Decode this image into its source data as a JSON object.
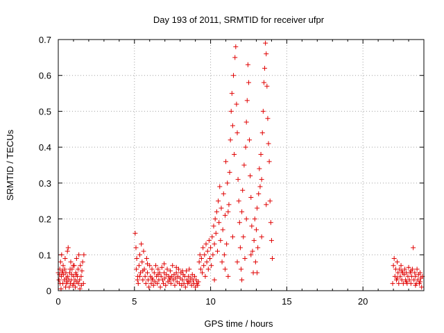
{
  "chart_data": {
    "type": "scatter",
    "title": "Day 193 of 2011, SRMTID for receiver ufpr",
    "xlabel": "GPS time / hours",
    "ylabel": "SRMTID / TECUs",
    "xlim": [
      0,
      24
    ],
    "ylim": [
      0,
      0.7
    ],
    "xticks": [
      0,
      5,
      10,
      15,
      20
    ],
    "xtick_labels": [
      "0",
      "5",
      "10",
      "15",
      "20"
    ],
    "yticks": [
      0,
      0.1,
      0.2,
      0.3,
      0.4,
      0.5,
      0.6,
      0.7
    ],
    "ytick_labels": [
      "0",
      "0.1",
      "0.2",
      "0.3",
      "0.4",
      "0.5",
      "0.6",
      "0.7"
    ],
    "grid": true,
    "marker": "+",
    "marker_color": "#e00000",
    "series": [
      {
        "name": "SRMTID",
        "points": [
          [
            0.0,
            0.05
          ],
          [
            0.05,
            0.03
          ],
          [
            0.1,
            0.06
          ],
          [
            0.12,
            0.02
          ],
          [
            0.15,
            0.08
          ],
          [
            0.2,
            0.04
          ],
          [
            0.22,
            0.1
          ],
          [
            0.25,
            0.05
          ],
          [
            0.3,
            0.02
          ],
          [
            0.32,
            0.07
          ],
          [
            0.35,
            0.045
          ],
          [
            0.4,
            0.03
          ],
          [
            0.42,
            0.06
          ],
          [
            0.45,
            0.09
          ],
          [
            0.5,
            0.05
          ],
          [
            0.52,
            0.035
          ],
          [
            0.55,
            0.02
          ],
          [
            0.6,
            0.11
          ],
          [
            0.62,
            0.04
          ],
          [
            0.65,
            0.12
          ],
          [
            0.7,
            0.03
          ],
          [
            0.72,
            0.01
          ],
          [
            0.75,
            0.05
          ],
          [
            0.8,
            0.02
          ],
          [
            0.82,
            0.08
          ],
          [
            0.85,
            0.03
          ],
          [
            0.9,
            0.06
          ],
          [
            0.95,
            0.015
          ],
          [
            1.0,
            0.04
          ],
          [
            1.02,
            0.02
          ],
          [
            1.05,
            0.07
          ],
          [
            1.1,
            0.03
          ],
          [
            1.12,
            0.01
          ],
          [
            1.15,
            0.05
          ],
          [
            1.2,
            0.09
          ],
          [
            1.22,
            0.025
          ],
          [
            1.25,
            0.04
          ],
          [
            1.3,
            0.06
          ],
          [
            1.32,
            0.02
          ],
          [
            1.35,
            0.1
          ],
          [
            1.4,
            0.03
          ],
          [
            1.45,
            0.07
          ],
          [
            1.5,
            0.04
          ],
          [
            1.52,
            0.015
          ],
          [
            1.55,
            0.055
          ],
          [
            1.6,
            0.08
          ],
          [
            1.65,
            0.02
          ],
          [
            1.68,
            0.1
          ],
          [
            0.18,
            0.005
          ],
          [
            0.48,
            0.01
          ],
          [
            0.78,
            0.06
          ],
          [
            0.98,
            0.07
          ],
          [
            1.18,
            0.045
          ],
          [
            1.42,
            0.005
          ],
          [
            0.08,
            0.045
          ],
          [
            0.28,
            0.055
          ],
          [
            0.58,
            0.025
          ],
          [
            0.88,
            0.045
          ],
          [
            5.05,
            0.16
          ],
          [
            5.1,
            0.12
          ],
          [
            5.12,
            0.06
          ],
          [
            5.15,
            0.09
          ],
          [
            5.2,
            0.03
          ],
          [
            5.22,
            0.04
          ],
          [
            5.25,
            0.02
          ],
          [
            5.3,
            0.07
          ],
          [
            5.35,
            0.1
          ],
          [
            5.4,
            0.05
          ],
          [
            5.45,
            0.13
          ],
          [
            5.5,
            0.08
          ],
          [
            5.55,
            0.03
          ],
          [
            5.6,
            0.11
          ],
          [
            5.65,
            0.06
          ],
          [
            5.7,
            0.04
          ],
          [
            5.75,
            0.02
          ],
          [
            5.8,
            0.09
          ],
          [
            5.85,
            0.05
          ],
          [
            5.9,
            0.03
          ],
          [
            5.95,
            0.01
          ],
          [
            6.0,
            0.07
          ],
          [
            6.05,
            0.04
          ],
          [
            6.1,
            0.02
          ],
          [
            6.15,
            0.06
          ],
          [
            6.2,
            0.03
          ],
          [
            6.25,
            0.015
          ],
          [
            6.3,
            0.05
          ],
          [
            6.35,
            0.025
          ],
          [
            6.4,
            0.07
          ],
          [
            6.45,
            0.04
          ],
          [
            6.5,
            0.02
          ],
          [
            6.55,
            0.06
          ],
          [
            6.6,
            0.03
          ],
          [
            6.65,
            0.05
          ],
          [
            6.7,
            0.01
          ],
          [
            6.75,
            0.04
          ],
          [
            6.8,
            0.065
          ],
          [
            6.85,
            0.03
          ],
          [
            6.9,
            0.02
          ],
          [
            6.95,
            0.05
          ],
          [
            7.0,
            0.035
          ],
          [
            7.05,
            0.015
          ],
          [
            7.1,
            0.045
          ],
          [
            7.15,
            0.06
          ],
          [
            7.2,
            0.025
          ],
          [
            7.25,
            0.04
          ],
          [
            7.3,
            0.03
          ],
          [
            7.35,
            0.055
          ],
          [
            7.4,
            0.02
          ],
          [
            7.45,
            0.04
          ],
          [
            7.5,
            0.07
          ],
          [
            7.55,
            0.03
          ],
          [
            7.6,
            0.045
          ],
          [
            7.65,
            0.015
          ],
          [
            7.7,
            0.035
          ],
          [
            7.75,
            0.05
          ],
          [
            7.8,
            0.025
          ],
          [
            7.85,
            0.04
          ],
          [
            7.9,
            0.06
          ],
          [
            7.95,
            0.02
          ],
          [
            8.0,
            0.035
          ],
          [
            8.05,
            0.05
          ],
          [
            8.1,
            0.015
          ],
          [
            8.15,
            0.03
          ],
          [
            8.2,
            0.045
          ],
          [
            8.25,
            0.02
          ],
          [
            8.3,
            0.04
          ],
          [
            8.35,
            0.01
          ],
          [
            8.4,
            0.055
          ],
          [
            8.45,
            0.03
          ],
          [
            8.5,
            0.02
          ],
          [
            8.55,
            0.04
          ],
          [
            8.6,
            0.06
          ],
          [
            8.65,
            0.025
          ],
          [
            8.7,
            0.035
          ],
          [
            8.75,
            0.015
          ],
          [
            8.8,
            0.045
          ],
          [
            8.85,
            0.03
          ],
          [
            8.9,
            0.02
          ],
          [
            8.95,
            0.04
          ],
          [
            9.0,
            0.01
          ],
          [
            9.05,
            0.03
          ],
          [
            9.1,
            0.02
          ],
          [
            9.15,
            0.015
          ],
          [
            9.2,
            0.025
          ],
          [
            5.35,
            0.04
          ],
          [
            5.55,
            0.055
          ],
          [
            5.85,
            0.075
          ],
          [
            6.15,
            0.035
          ],
          [
            6.55,
            0.045
          ],
          [
            6.95,
            0.075
          ],
          [
            7.35,
            0.035
          ],
          [
            7.75,
            0.065
          ],
          [
            8.15,
            0.055
          ],
          [
            8.55,
            0.025
          ],
          [
            9.25,
            0.08
          ],
          [
            9.3,
            0.1
          ],
          [
            9.35,
            0.06
          ],
          [
            9.4,
            0.09
          ],
          [
            9.45,
            0.05
          ],
          [
            9.5,
            0.12
          ],
          [
            9.55,
            0.07
          ],
          [
            9.6,
            0.1
          ],
          [
            9.65,
            0.04
          ],
          [
            9.7,
            0.13
          ],
          [
            9.75,
            0.08
          ],
          [
            9.8,
            0.11
          ],
          [
            9.85,
            0.06
          ],
          [
            9.9,
            0.14
          ],
          [
            9.95,
            0.09
          ],
          [
            10.0,
            0.12
          ],
          [
            10.05,
            0.07
          ],
          [
            10.1,
            0.15
          ],
          [
            10.15,
            0.1
          ],
          [
            10.2,
            0.18
          ],
          [
            10.25,
            0.13
          ],
          [
            10.3,
            0.2
          ],
          [
            10.35,
            0.16
          ],
          [
            10.4,
            0.22
          ],
          [
            10.45,
            0.11
          ],
          [
            10.5,
            0.25
          ],
          [
            10.55,
            0.19
          ],
          [
            10.6,
            0.29
          ],
          [
            10.65,
            0.14
          ],
          [
            10.7,
            0.23
          ],
          [
            10.75,
            0.08
          ],
          [
            10.8,
            0.17
          ],
          [
            10.85,
            0.27
          ],
          [
            10.9,
            0.1
          ],
          [
            10.95,
            0.21
          ],
          [
            11.0,
            0.36
          ],
          [
            11.05,
            0.13
          ],
          [
            11.1,
            0.3
          ],
          [
            11.15,
            0.04
          ],
          [
            11.2,
            0.24
          ],
          [
            11.25,
            0.33
          ],
          [
            11.3,
            0.42
          ],
          [
            11.35,
            0.5
          ],
          [
            11.4,
            0.55
          ],
          [
            11.45,
            0.46
          ],
          [
            11.5,
            0.6
          ],
          [
            11.55,
            0.38
          ],
          [
            11.6,
            0.65
          ],
          [
            11.65,
            0.68
          ],
          [
            11.7,
            0.52
          ],
          [
            11.75,
            0.44
          ],
          [
            11.8,
            0.31
          ],
          [
            11.85,
            0.25
          ],
          [
            11.9,
            0.19
          ],
          [
            11.95,
            0.12
          ],
          [
            12.0,
            0.06
          ],
          [
            12.05,
            0.22
          ],
          [
            12.1,
            0.28
          ],
          [
            12.15,
            0.15
          ],
          [
            12.2,
            0.35
          ],
          [
            12.25,
            0.09
          ],
          [
            12.3,
            0.4
          ],
          [
            12.35,
            0.47
          ],
          [
            12.4,
            0.53
          ],
          [
            12.45,
            0.63
          ],
          [
            12.5,
            0.58
          ],
          [
            12.55,
            0.42
          ],
          [
            12.6,
            0.32
          ],
          [
            12.65,
            0.26
          ],
          [
            12.7,
            0.18
          ],
          [
            12.75,
            0.11
          ],
          [
            12.8,
            0.05
          ],
          [
            12.85,
            0.14
          ],
          [
            12.9,
            0.2
          ],
          [
            12.95,
            0.08
          ],
          [
            13.0,
            0.17
          ],
          [
            13.05,
            0.23
          ],
          [
            13.1,
            0.12
          ],
          [
            13.15,
            0.27
          ],
          [
            13.2,
            0.34
          ],
          [
            13.25,
            0.29
          ],
          [
            13.3,
            0.38
          ],
          [
            13.35,
            0.31
          ],
          [
            13.4,
            0.44
          ],
          [
            13.45,
            0.5
          ],
          [
            13.5,
            0.58
          ],
          [
            13.55,
            0.62
          ],
          [
            13.6,
            0.69
          ],
          [
            13.65,
            0.66
          ],
          [
            13.7,
            0.57
          ],
          [
            13.75,
            0.48
          ],
          [
            13.8,
            0.41
          ],
          [
            13.85,
            0.36
          ],
          [
            13.9,
            0.25
          ],
          [
            13.95,
            0.19
          ],
          [
            14.0,
            0.14
          ],
          [
            14.05,
            0.09
          ],
          [
            11.15,
            0.22
          ],
          [
            11.45,
            0.15
          ],
          [
            11.75,
            0.08
          ],
          [
            12.05,
            0.03
          ],
          [
            12.35,
            0.2
          ],
          [
            12.65,
            0.1
          ],
          [
            13.05,
            0.05
          ],
          [
            13.35,
            0.15
          ],
          [
            13.65,
            0.24
          ],
          [
            10.95,
            0.06
          ],
          [
            10.25,
            0.03
          ],
          [
            21.95,
            0.02
          ],
          [
            22.0,
            0.07
          ],
          [
            22.05,
            0.09
          ],
          [
            22.1,
            0.04
          ],
          [
            22.15,
            0.06
          ],
          [
            22.2,
            0.03
          ],
          [
            22.25,
            0.08
          ],
          [
            22.3,
            0.05
          ],
          [
            22.35,
            0.02
          ],
          [
            22.4,
            0.06
          ],
          [
            22.45,
            0.04
          ],
          [
            22.5,
            0.07
          ],
          [
            22.55,
            0.03
          ],
          [
            22.6,
            0.05
          ],
          [
            22.65,
            0.02
          ],
          [
            22.7,
            0.045
          ],
          [
            22.75,
            0.06
          ],
          [
            22.8,
            0.03
          ],
          [
            22.85,
            0.05
          ],
          [
            22.9,
            0.02
          ],
          [
            22.95,
            0.04
          ],
          [
            23.0,
            0.065
          ],
          [
            23.05,
            0.03
          ],
          [
            23.1,
            0.05
          ],
          [
            23.15,
            0.02
          ],
          [
            23.2,
            0.04
          ],
          [
            23.25,
            0.06
          ],
          [
            23.3,
            0.12
          ],
          [
            23.35,
            0.03
          ],
          [
            23.4,
            0.05
          ],
          [
            23.45,
            0.04
          ],
          [
            23.5,
            0.02
          ],
          [
            23.55,
            0.06
          ],
          [
            23.6,
            0.03
          ],
          [
            23.65,
            0.045
          ],
          [
            23.7,
            0.02
          ],
          [
            23.75,
            0.05
          ],
          [
            23.8,
            0.035
          ],
          [
            23.85,
            0.01
          ],
          [
            23.9,
            0.04
          ],
          [
            22.25,
            0.035
          ],
          [
            22.55,
            0.055
          ],
          [
            22.85,
            0.025
          ],
          [
            23.15,
            0.055
          ],
          [
            23.45,
            0.015
          ],
          [
            23.75,
            0.025
          ]
        ]
      }
    ]
  }
}
